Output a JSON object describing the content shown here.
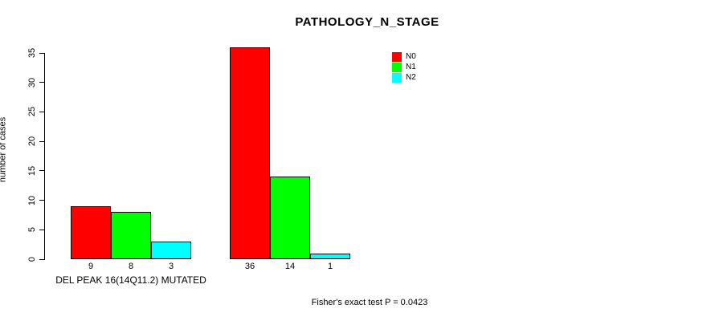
{
  "chart_data": {
    "type": "bar",
    "title": "PATHOLOGY_N_STAGE",
    "ylabel": "number of cases",
    "xlabel": "",
    "ylim": [
      0,
      35
    ],
    "yticks": [
      0,
      5,
      10,
      15,
      20,
      25,
      30,
      35
    ],
    "grid": false,
    "legend_position": "top-right",
    "categories": [
      "DEL PEAK 16(14Q11.2) MUTATED",
      ""
    ],
    "series": [
      {
        "name": "N0",
        "color": "#ff0000",
        "values": [
          9,
          36
        ]
      },
      {
        "name": "N1",
        "color": "#00ff00",
        "values": [
          8,
          14
        ]
      },
      {
        "name": "N2",
        "color": "#00ffff",
        "values": [
          3,
          1
        ]
      }
    ],
    "bar_value_labels": [
      [
        9,
        8,
        3
      ],
      [
        36,
        14,
        1
      ]
    ],
    "annotation": "Fisher's exact test P = 0.0423"
  }
}
